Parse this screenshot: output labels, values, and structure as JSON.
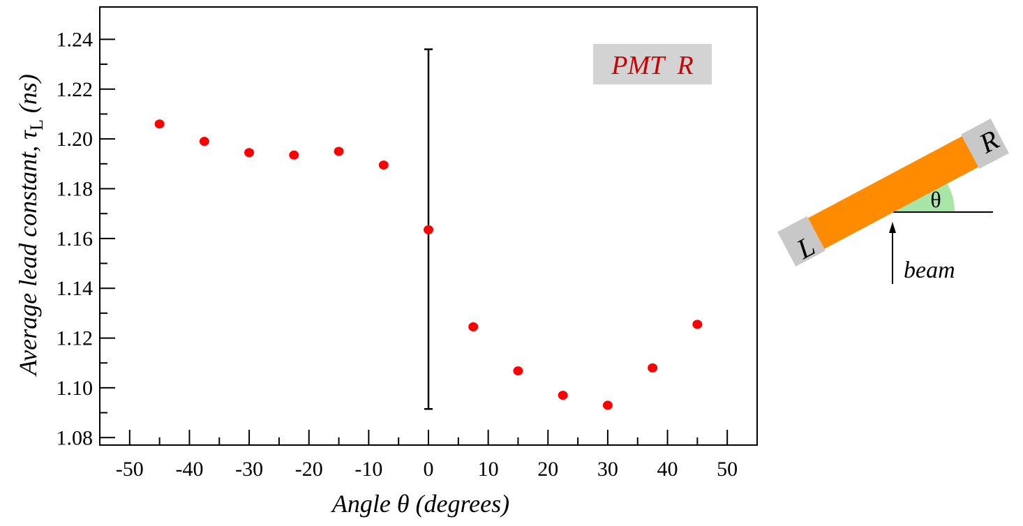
{
  "chart_data": {
    "type": "scatter",
    "xlabel": "Angle θ (degrees)",
    "ylabel_main": "Average lead constant, τ",
    "ylabel_sub": "L",
    "ylabel_unit": " (ns)",
    "xlim": [
      -55,
      55
    ],
    "ylim": [
      1.077,
      1.253
    ],
    "xticks": [
      -50,
      -40,
      -30,
      -20,
      -10,
      0,
      10,
      20,
      30,
      40,
      50
    ],
    "xtick_labels": [
      "-50",
      "-40",
      "-30",
      "-20",
      "-10",
      "0",
      "10",
      "20",
      "30",
      "40",
      "50"
    ],
    "yticks": [
      1.08,
      1.1,
      1.12,
      1.14,
      1.16,
      1.18,
      1.2,
      1.22,
      1.24
    ],
    "ytick_labels": [
      "1.08",
      "1.10",
      "1.12",
      "1.14",
      "1.16",
      "1.18",
      "1.20",
      "1.22",
      "1.24"
    ],
    "series": [
      {
        "color": "#ff0000",
        "x": [
          -45,
          -37.5,
          -30,
          -22.5,
          -15,
          -7.5,
          0,
          7.5,
          15,
          22.5,
          30,
          37.5,
          45
        ],
        "y": [
          1.206,
          1.199,
          1.1945,
          1.1935,
          1.195,
          1.1895,
          1.1635,
          1.1245,
          1.1068,
          1.097,
          1.093,
          1.108,
          1.1255
        ]
      }
    ],
    "error_bar": {
      "x": 0,
      "y_low": 1.0915,
      "y_high": 1.236
    },
    "legend_label": "PMT  R",
    "legend_bg": "#d3d3d3",
    "legend_color": "#cc0000",
    "legend_position": "top-right",
    "grid": false
  },
  "diagram": {
    "left_label": "L",
    "right_label": "R",
    "angle_label": "θ",
    "beam_label": "beam",
    "bar_color": "#ff8c00",
    "cap_color": "#c8c8c8",
    "angle_fill": "#a8e6a8"
  }
}
